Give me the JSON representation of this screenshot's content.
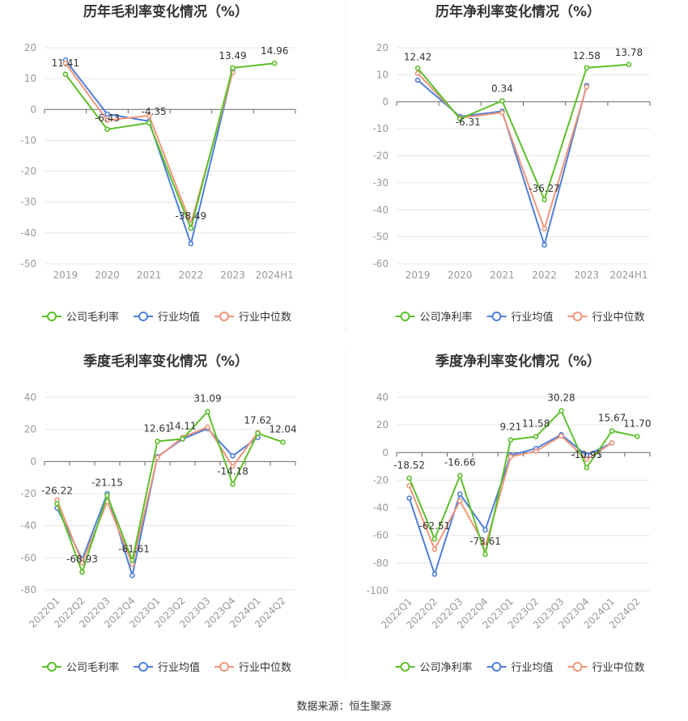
{
  "colors": {
    "company": "#5cc02a",
    "industry_avg": "#4f7fdc",
    "industry_median": "#f0957a",
    "axis_text": "#999999",
    "grid": "#e6e6e6",
    "title": "#333333"
  },
  "legend": {
    "company_gross": "公司毛利率",
    "company_net": "公司净利率",
    "industry_avg": "行业均值",
    "industry_median": "行业中位数"
  },
  "source_text": "数据来源：恒生聚源",
  "chart_data": [
    {
      "type": "line",
      "title": "历年毛利率变化情况（%）",
      "categories": [
        "2019",
        "2020",
        "2021",
        "2022",
        "2023",
        "2024H1"
      ],
      "yticks": [
        20,
        10,
        0,
        -10,
        -20,
        -30,
        -40,
        -50
      ],
      "ylim": [
        -50,
        20
      ],
      "grid": true,
      "legend_position": "bottom",
      "series": [
        {
          "name": "公司毛利率",
          "values": [
            11.41,
            -6.43,
            -4.35,
            -38.49,
            13.49,
            14.96
          ],
          "labels": [
            "11.41",
            "-6.43",
            "-4.35",
            "-38.49",
            "13.49",
            "14.96"
          ]
        },
        {
          "name": "行业均值",
          "values": [
            16.0,
            -1.5,
            -3.8,
            -43.5,
            12.5,
            null
          ]
        },
        {
          "name": "行业中位数",
          "values": [
            15.0,
            -3.5,
            -2.0,
            -37.0,
            12.0,
            null
          ]
        }
      ]
    },
    {
      "type": "line",
      "title": "历年净利率变化情况（%）",
      "categories": [
        "2019",
        "2020",
        "2021",
        "2022",
        "2023",
        "2024H1"
      ],
      "yticks": [
        20,
        10,
        0,
        -10,
        -20,
        -30,
        -40,
        -50,
        -60
      ],
      "ylim": [
        -60,
        20
      ],
      "grid": true,
      "legend_position": "bottom",
      "series": [
        {
          "name": "公司净利率",
          "values": [
            12.42,
            -6.31,
            0.34,
            -36.27,
            12.58,
            13.78
          ],
          "labels": [
            "12.42",
            "-6.31",
            "0.34",
            "-36.27",
            "12.58",
            "13.78"
          ]
        },
        {
          "name": "行业均值",
          "values": [
            8.0,
            -5.5,
            -3.5,
            -53.0,
            6.0,
            null
          ]
        },
        {
          "name": "行业中位数",
          "values": [
            10.5,
            -6.0,
            -4.0,
            -47.0,
            5.5,
            null
          ]
        }
      ]
    },
    {
      "type": "line",
      "title": "季度毛利率变化情况（%）",
      "categories": [
        "2022Q1",
        "2022Q2",
        "2022Q3",
        "2022Q4",
        "2023Q1",
        "2023Q2",
        "2023Q3",
        "2023Q4",
        "2024Q1",
        "2024Q2"
      ],
      "yticks": [
        40,
        20,
        0,
        -20,
        -40,
        -60,
        -80
      ],
      "ylim": [
        -80,
        40
      ],
      "grid": true,
      "legend_position": "bottom",
      "series": [
        {
          "name": "公司毛利率",
          "values": [
            -26.22,
            -68.93,
            -21.15,
            -61.61,
            12.61,
            14.11,
            31.09,
            -14.18,
            17.62,
            12.04
          ],
          "labels": [
            "-26.22",
            "-68.93",
            "-21.15",
            "-61.61",
            "12.61",
            "14.11",
            "31.09",
            "-14.18",
            "17.62",
            "12.04"
          ]
        },
        {
          "name": "行业均值",
          "values": [
            -29.0,
            -61.0,
            -20.0,
            -71.0,
            3.0,
            14.0,
            20.5,
            3.5,
            15.0,
            null
          ]
        },
        {
          "name": "行业中位数",
          "values": [
            -24.0,
            -63.0,
            -25.0,
            -64.0,
            2.5,
            15.0,
            21.5,
            -3.0,
            18.0,
            null
          ]
        }
      ]
    },
    {
      "type": "line",
      "title": "季度净利率变化情况（%）",
      "categories": [
        "2022Q1",
        "2022Q2",
        "2022Q3",
        "2022Q4",
        "2023Q1",
        "2023Q2",
        "2023Q3",
        "2023Q4",
        "2024Q1",
        "2024Q2"
      ],
      "yticks": [
        40,
        20,
        0,
        -20,
        -40,
        -60,
        -80,
        -100
      ],
      "ylim": [
        -100,
        40
      ],
      "grid": true,
      "legend_position": "bottom",
      "series": [
        {
          "name": "公司净利率",
          "values": [
            -18.52,
            -62.51,
            -16.66,
            -73.61,
            9.21,
            11.58,
            30.28,
            -10.95,
            15.67,
            11.7
          ],
          "labels": [
            "-18.52",
            "-62.51",
            "-16.66",
            "-73.61",
            "9.21",
            "11.58",
            "30.28",
            "-10.95",
            "15.67",
            "11.70"
          ]
        },
        {
          "name": "行业均值",
          "values": [
            -33.0,
            -88.0,
            -30.0,
            -56.0,
            -2.0,
            3.0,
            13.0,
            -2.0,
            7.0,
            null
          ]
        },
        {
          "name": "行业中位数",
          "values": [
            -24.0,
            -70.0,
            -35.0,
            -68.0,
            -3.0,
            1.0,
            12.0,
            -5.0,
            7.0,
            null
          ]
        }
      ]
    }
  ]
}
